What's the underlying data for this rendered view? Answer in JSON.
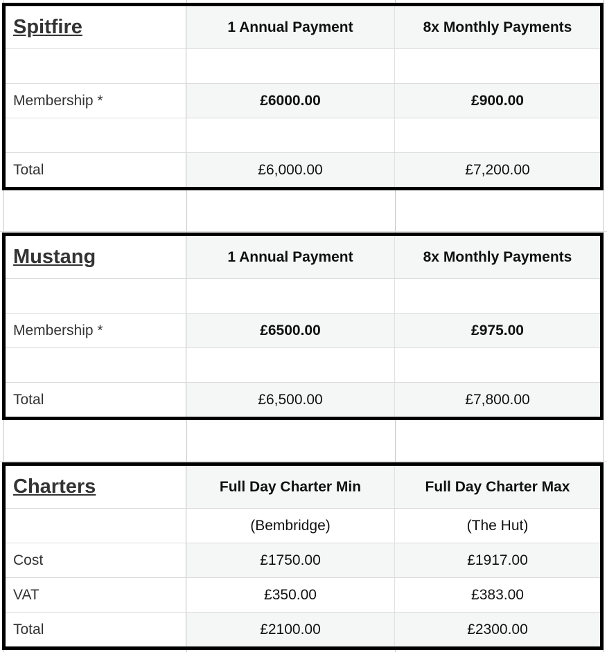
{
  "sections": [
    {
      "title": "Spitfire",
      "columns": [
        "1 Annual Payment",
        "8x Monthly Payments"
      ],
      "rows": [
        {
          "label": "",
          "values": [
            "",
            ""
          ]
        },
        {
          "label": "Membership *",
          "values": [
            "£6000.00",
            "£900.00"
          ],
          "bold": true
        },
        {
          "label": "",
          "values": [
            "",
            ""
          ]
        },
        {
          "label": "Total",
          "values": [
            "£6,000.00",
            "£7,200.00"
          ]
        }
      ]
    },
    {
      "title": "Mustang",
      "columns": [
        "1 Annual Payment",
        "8x Monthly Payments"
      ],
      "rows": [
        {
          "label": "",
          "values": [
            "",
            ""
          ]
        },
        {
          "label": "Membership *",
          "values": [
            "£6500.00",
            "£975.00"
          ],
          "bold": true
        },
        {
          "label": "",
          "values": [
            "",
            ""
          ]
        },
        {
          "label": "Total",
          "values": [
            "£6,500.00",
            "£7,800.00"
          ]
        }
      ]
    },
    {
      "title": "Charters",
      "columns": [
        "Full Day Charter Min",
        "Full Day Charter Max"
      ],
      "rows": [
        {
          "label": "",
          "values": [
            "(Bembridge)",
            "(The Hut)"
          ]
        },
        {
          "label": "Cost",
          "values": [
            "£1750.00",
            "£1917.00"
          ]
        },
        {
          "label": "VAT",
          "values": [
            "£350.00",
            "£383.00"
          ]
        },
        {
          "label": "Total",
          "values": [
            "£2100.00",
            "£2300.00"
          ]
        }
      ]
    }
  ],
  "colors": {
    "border": "#000000",
    "shade": "#f4f7f6",
    "grid": "#e0e0e0"
  }
}
